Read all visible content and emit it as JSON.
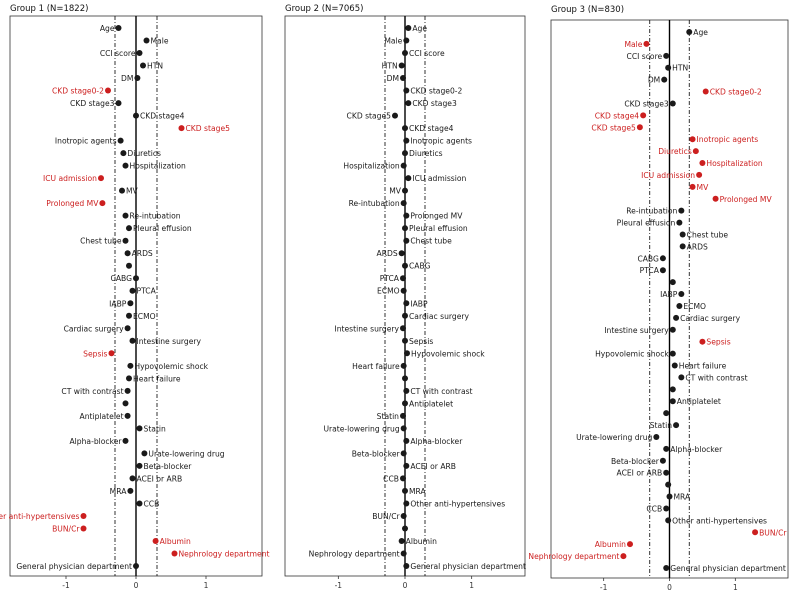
{
  "colors": {
    "significant": "#cc1f1f",
    "normal": "#1a1a1a",
    "frame": "#333333",
    "zero_line": "#000000",
    "threshold_line": "#000000"
  },
  "chart_data": [
    {
      "type": "scatter",
      "title": "Group 1 (N=1822)",
      "xlim": [
        -1.8,
        1.8
      ],
      "x_ticks": [
        -1,
        0,
        1
      ],
      "thresholds": [
        -0.3,
        0.3
      ],
      "points": [
        {
          "label": "Age",
          "x": -0.25,
          "sig": false,
          "side": "left"
        },
        {
          "label": "Male",
          "x": 0.15,
          "sig": false,
          "side": "right"
        },
        {
          "label": "CCI score",
          "x": 0.05,
          "sig": false,
          "side": "left"
        },
        {
          "label": "HTN",
          "x": 0.1,
          "sig": false,
          "side": "right"
        },
        {
          "label": "DM",
          "x": 0.02,
          "sig": false,
          "side": "left"
        },
        {
          "label": "CKD stage0-2",
          "x": -0.4,
          "sig": true,
          "side": "left"
        },
        {
          "label": "CKD stage3",
          "x": -0.25,
          "sig": false,
          "side": "left"
        },
        {
          "label": "CKD stage4",
          "x": 0.0,
          "sig": false,
          "side": "right"
        },
        {
          "label": "CKD stage5",
          "x": 0.65,
          "sig": true,
          "side": "right"
        },
        {
          "label": "Inotropic agents",
          "x": -0.22,
          "sig": false,
          "side": "left"
        },
        {
          "label": "Diuretics",
          "x": -0.18,
          "sig": false,
          "side": "right"
        },
        {
          "label": "Hospitalization",
          "x": -0.15,
          "sig": false,
          "side": "right"
        },
        {
          "label": "ICU admission",
          "x": -0.5,
          "sig": true,
          "side": "left"
        },
        {
          "label": "MV",
          "x": -0.2,
          "sig": false,
          "side": "right"
        },
        {
          "label": "Prolonged MV",
          "x": -0.48,
          "sig": true,
          "side": "left"
        },
        {
          "label": "Re-intubation",
          "x": -0.15,
          "sig": false,
          "side": "right"
        },
        {
          "label": "Pleural effusion",
          "x": -0.1,
          "sig": false,
          "side": "right"
        },
        {
          "label": "Chest tube",
          "x": -0.15,
          "sig": false,
          "side": "left"
        },
        {
          "label": "ARDS",
          "x": -0.12,
          "sig": false,
          "side": "right"
        },
        {
          "label": "",
          "x": -0.1,
          "sig": false,
          "side": "right"
        },
        {
          "label": "CABG",
          "x": 0.0,
          "sig": false,
          "side": "left"
        },
        {
          "label": "PTCA",
          "x": -0.05,
          "sig": false,
          "side": "right"
        },
        {
          "label": "IABP",
          "x": -0.08,
          "sig": false,
          "side": "left"
        },
        {
          "label": "ECMO",
          "x": -0.1,
          "sig": false,
          "side": "right"
        },
        {
          "label": "Cardiac surgery",
          "x": -0.12,
          "sig": false,
          "side": "left"
        },
        {
          "label": "Intestine surgery",
          "x": -0.05,
          "sig": false,
          "side": "right"
        },
        {
          "label": "Sepsis",
          "x": -0.35,
          "sig": true,
          "side": "left"
        },
        {
          "label": "Hypovolemic shock",
          "x": -0.08,
          "sig": false,
          "side": "right"
        },
        {
          "label": "Heart failure",
          "x": -0.1,
          "sig": false,
          "side": "right"
        },
        {
          "label": "CT with contrast",
          "x": -0.12,
          "sig": false,
          "side": "left"
        },
        {
          "label": "",
          "x": -0.15,
          "sig": false,
          "side": "right"
        },
        {
          "label": "Antiplatelet",
          "x": -0.12,
          "sig": false,
          "side": "left"
        },
        {
          "label": "Statin",
          "x": 0.05,
          "sig": false,
          "side": "right"
        },
        {
          "label": "Alpha-blocker",
          "x": -0.15,
          "sig": false,
          "side": "left"
        },
        {
          "label": "Urate-lowering drug",
          "x": 0.12,
          "sig": false,
          "side": "right"
        },
        {
          "label": "Beta-blocker",
          "x": 0.05,
          "sig": false,
          "side": "right"
        },
        {
          "label": "ACEI or ARB",
          "x": -0.05,
          "sig": false,
          "side": "right"
        },
        {
          "label": "MRA",
          "x": -0.08,
          "sig": false,
          "side": "left"
        },
        {
          "label": "CCB",
          "x": 0.05,
          "sig": false,
          "side": "right"
        },
        {
          "label": "Other anti-hypertensives",
          "x": -0.75,
          "sig": true,
          "side": "left"
        },
        {
          "label": "BUN/Cr",
          "x": -0.75,
          "sig": true,
          "side": "left"
        },
        {
          "label": "Albumin",
          "x": 0.28,
          "sig": true,
          "side": "right"
        },
        {
          "label": "Nephrology department",
          "x": 0.55,
          "sig": true,
          "side": "right"
        },
        {
          "label": "General physician department",
          "x": 0.0,
          "sig": false,
          "side": "left"
        }
      ]
    },
    {
      "type": "scatter",
      "title": "Group 2 (N=7065)",
      "xlim": [
        -1.8,
        1.8
      ],
      "x_ticks": [
        -1,
        0,
        1
      ],
      "thresholds": [
        -0.3,
        0.3
      ],
      "points": [
        {
          "label": "Age",
          "x": 0.05,
          "sig": false,
          "side": "right"
        },
        {
          "label": "Male",
          "x": 0.02,
          "sig": false,
          "side": "left"
        },
        {
          "label": "CCI score",
          "x": 0.0,
          "sig": false,
          "side": "right"
        },
        {
          "label": "HTN",
          "x": -0.05,
          "sig": false,
          "side": "left"
        },
        {
          "label": "DM",
          "x": -0.03,
          "sig": false,
          "side": "left"
        },
        {
          "label": "CKD stage0-2",
          "x": 0.02,
          "sig": false,
          "side": "right"
        },
        {
          "label": "CKD stage3",
          "x": 0.05,
          "sig": false,
          "side": "right"
        },
        {
          "label": "CKD stage5",
          "x": -0.15,
          "sig": false,
          "side": "left"
        },
        {
          "label": "CKD stage4",
          "x": 0.0,
          "sig": false,
          "side": "right"
        },
        {
          "label": "Inotropic agents",
          "x": 0.02,
          "sig": false,
          "side": "right"
        },
        {
          "label": "Diuretics",
          "x": 0.0,
          "sig": false,
          "side": "right"
        },
        {
          "label": "Hospitalization",
          "x": -0.02,
          "sig": false,
          "side": "left"
        },
        {
          "label": "ICU admission",
          "x": 0.05,
          "sig": false,
          "side": "right"
        },
        {
          "label": "MV",
          "x": 0.0,
          "sig": false,
          "side": "left"
        },
        {
          "label": "Re-intubation",
          "x": -0.02,
          "sig": false,
          "side": "left"
        },
        {
          "label": "Prolonged MV",
          "x": 0.02,
          "sig": false,
          "side": "right"
        },
        {
          "label": "Pleural effusion",
          "x": 0.0,
          "sig": false,
          "side": "right"
        },
        {
          "label": "Chest tube",
          "x": 0.02,
          "sig": false,
          "side": "right"
        },
        {
          "label": "ARDS",
          "x": -0.05,
          "sig": false,
          "side": "left"
        },
        {
          "label": "CABG",
          "x": 0.0,
          "sig": false,
          "side": "right"
        },
        {
          "label": "PTCA",
          "x": -0.03,
          "sig": false,
          "side": "left"
        },
        {
          "label": "ECMO",
          "x": -0.02,
          "sig": false,
          "side": "left"
        },
        {
          "label": "IABP",
          "x": 0.02,
          "sig": false,
          "side": "right"
        },
        {
          "label": "Cardiac surgery",
          "x": 0.0,
          "sig": false,
          "side": "right"
        },
        {
          "label": "Intestine surgery",
          "x": -0.03,
          "sig": false,
          "side": "left"
        },
        {
          "label": "Sepsis",
          "x": 0.0,
          "sig": false,
          "side": "right"
        },
        {
          "label": "Hypovolemic shock",
          "x": 0.03,
          "sig": false,
          "side": "right"
        },
        {
          "label": "Heart failure",
          "x": -0.02,
          "sig": false,
          "side": "left"
        },
        {
          "label": "",
          "x": 0.0,
          "sig": false,
          "side": "right"
        },
        {
          "label": "CT with contrast",
          "x": 0.02,
          "sig": false,
          "side": "right"
        },
        {
          "label": "Antiplatelet",
          "x": 0.0,
          "sig": false,
          "side": "right"
        },
        {
          "label": "Statin",
          "x": -0.03,
          "sig": false,
          "side": "left"
        },
        {
          "label": "Urate-lowering drug",
          "x": -0.02,
          "sig": false,
          "side": "left"
        },
        {
          "label": "Alpha-blocker",
          "x": 0.02,
          "sig": false,
          "side": "right"
        },
        {
          "label": "Beta-blocker",
          "x": -0.02,
          "sig": false,
          "side": "left"
        },
        {
          "label": "ACEI or ARB",
          "x": 0.02,
          "sig": false,
          "side": "right"
        },
        {
          "label": "CCB",
          "x": -0.03,
          "sig": false,
          "side": "left"
        },
        {
          "label": "MRA",
          "x": 0.0,
          "sig": false,
          "side": "right"
        },
        {
          "label": "Other anti-hypertensives",
          "x": 0.02,
          "sig": false,
          "side": "right"
        },
        {
          "label": "BUN/Cr",
          "x": -0.02,
          "sig": false,
          "side": "left"
        },
        {
          "label": "",
          "x": 0.0,
          "sig": false,
          "side": "right"
        },
        {
          "label": "Albumin",
          "x": -0.05,
          "sig": false,
          "side": "right"
        },
        {
          "label": "Nephrology department",
          "x": -0.02,
          "sig": false,
          "side": "left"
        },
        {
          "label": "General physician department",
          "x": 0.02,
          "sig": false,
          "side": "right"
        }
      ]
    },
    {
      "type": "scatter",
      "title": "Group 3 (N=830)",
      "xlim": [
        -1.8,
        1.8
      ],
      "x_ticks": [
        -1,
        0,
        1
      ],
      "thresholds": [
        -0.3,
        0.3
      ],
      "points": [
        {
          "label": "Age",
          "x": 0.3,
          "sig": false,
          "side": "right"
        },
        {
          "label": "Male",
          "x": -0.35,
          "sig": true,
          "side": "left"
        },
        {
          "label": "CCI score",
          "x": -0.05,
          "sig": false,
          "side": "left"
        },
        {
          "label": "HTN",
          "x": -0.02,
          "sig": false,
          "side": "right"
        },
        {
          "label": "DM",
          "x": -0.08,
          "sig": false,
          "side": "left"
        },
        {
          "label": "CKD stage0-2",
          "x": 0.55,
          "sig": true,
          "side": "right"
        },
        {
          "label": "CKD stage3",
          "x": 0.05,
          "sig": false,
          "side": "left"
        },
        {
          "label": "CKD stage4",
          "x": -0.4,
          "sig": true,
          "side": "left"
        },
        {
          "label": "CKD stage5",
          "x": -0.45,
          "sig": true,
          "side": "left"
        },
        {
          "label": "Inotropic agents",
          "x": 0.35,
          "sig": true,
          "side": "right"
        },
        {
          "label": "Diuretics",
          "x": 0.4,
          "sig": true,
          "side": "left"
        },
        {
          "label": "Hospitalization",
          "x": 0.5,
          "sig": true,
          "side": "right"
        },
        {
          "label": "ICU admission",
          "x": 0.45,
          "sig": true,
          "side": "left"
        },
        {
          "label": "MV",
          "x": 0.35,
          "sig": true,
          "side": "right"
        },
        {
          "label": "Prolonged MV",
          "x": 0.7,
          "sig": true,
          "side": "right"
        },
        {
          "label": "Re-intubation",
          "x": 0.18,
          "sig": false,
          "side": "left"
        },
        {
          "label": "Pleural effusion",
          "x": 0.15,
          "sig": false,
          "side": "left"
        },
        {
          "label": "Chest tube",
          "x": 0.2,
          "sig": false,
          "side": "right"
        },
        {
          "label": "ARDS",
          "x": 0.2,
          "sig": false,
          "side": "right"
        },
        {
          "label": "CABG",
          "x": -0.1,
          "sig": false,
          "side": "left"
        },
        {
          "label": "PTCA",
          "x": -0.1,
          "sig": false,
          "side": "left"
        },
        {
          "label": "",
          "x": 0.05,
          "sig": false,
          "side": "right"
        },
        {
          "label": "IABP",
          "x": 0.18,
          "sig": false,
          "side": "left"
        },
        {
          "label": "ECMO",
          "x": 0.15,
          "sig": false,
          "side": "right"
        },
        {
          "label": "Cardiac surgery",
          "x": 0.1,
          "sig": false,
          "side": "right"
        },
        {
          "label": "Intestine surgery",
          "x": 0.05,
          "sig": false,
          "side": "left"
        },
        {
          "label": "Sepsis",
          "x": 0.5,
          "sig": true,
          "side": "right"
        },
        {
          "label": "Hypovolemic shock",
          "x": 0.05,
          "sig": false,
          "side": "left"
        },
        {
          "label": "Heart failure",
          "x": 0.08,
          "sig": false,
          "side": "right"
        },
        {
          "label": "CT with contrast",
          "x": 0.18,
          "sig": false,
          "side": "right"
        },
        {
          "label": "",
          "x": 0.05,
          "sig": false,
          "side": "right"
        },
        {
          "label": "Antiplatelet",
          "x": 0.05,
          "sig": false,
          "side": "right"
        },
        {
          "label": "",
          "x": -0.05,
          "sig": false,
          "side": "right"
        },
        {
          "label": "Statin",
          "x": 0.1,
          "sig": false,
          "side": "left"
        },
        {
          "label": "Urate-lowering drug",
          "x": -0.2,
          "sig": false,
          "side": "left"
        },
        {
          "label": "Alpha-blocker",
          "x": -0.05,
          "sig": false,
          "side": "right"
        },
        {
          "label": "Beta-blocker",
          "x": -0.1,
          "sig": false,
          "side": "left"
        },
        {
          "label": "ACEI or ARB",
          "x": -0.05,
          "sig": false,
          "side": "left"
        },
        {
          "label": "",
          "x": -0.02,
          "sig": false,
          "side": "right"
        },
        {
          "label": "MRA",
          "x": 0.0,
          "sig": false,
          "side": "right"
        },
        {
          "label": "CCB",
          "x": -0.05,
          "sig": false,
          "side": "left"
        },
        {
          "label": "Other anti-hypertensives",
          "x": -0.02,
          "sig": false,
          "side": "right"
        },
        {
          "label": "BUN/Cr",
          "x": 1.3,
          "sig": true,
          "side": "right"
        },
        {
          "label": "Albumin",
          "x": -0.6,
          "sig": true,
          "side": "left"
        },
        {
          "label": "Nephrology department",
          "x": -0.7,
          "sig": true,
          "side": "left"
        },
        {
          "label": "General physician department",
          "x": -0.05,
          "sig": false,
          "side": "right"
        }
      ]
    }
  ]
}
